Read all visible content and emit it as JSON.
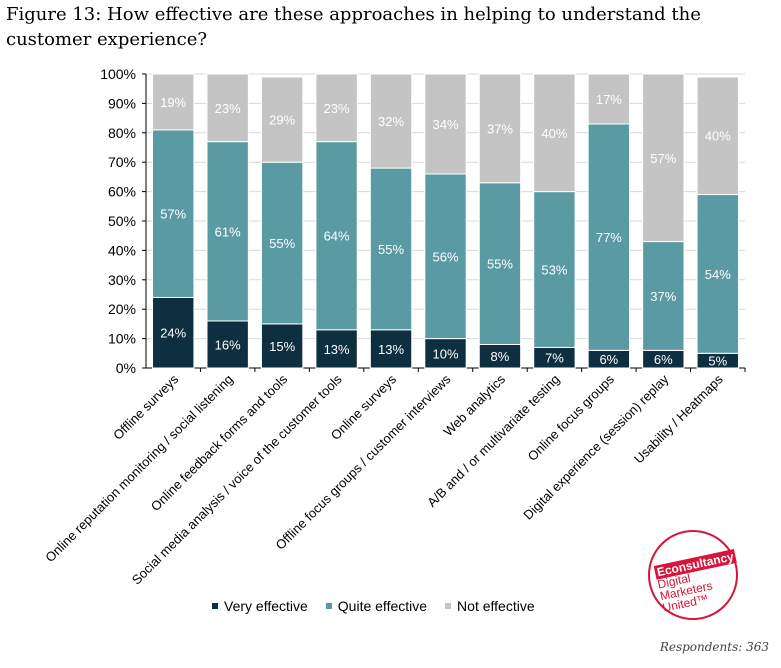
{
  "title": "Figure 13: How effective are these approaches in helping to understand the customer experience?",
  "respondents": "Respondents: 363",
  "logo": {
    "brand": "Econsultancy",
    "lines": [
      "Digital",
      "Marketers",
      "United™"
    ]
  },
  "chart_data": {
    "type": "bar",
    "stacked": true,
    "title": "How effective are these approaches in helping to understand the customer experience?",
    "xlabel": "",
    "ylabel": "",
    "ylim": [
      0,
      100
    ],
    "y_ticks": [
      "0%",
      "10%",
      "20%",
      "30%",
      "40%",
      "50%",
      "60%",
      "70%",
      "80%",
      "90%",
      "100%"
    ],
    "grid": true,
    "legend_position": "bottom",
    "categories": [
      "Offline surveys",
      "Online reputation monitoring / social listening",
      "Online feedback forms and tools",
      "Social media analysis / voice of the customer tools",
      "Online surveys",
      "Offline focus groups / customer interviews",
      "Web analytics",
      "A/B and / or multivariate testing",
      "Online focus groups",
      "Digital experience (session) replay",
      "Usability / Heatmaps"
    ],
    "series": [
      {
        "name": "Very effective",
        "color": "#0d2f3f",
        "values": [
          24,
          16,
          15,
          13,
          13,
          10,
          8,
          7,
          6,
          6,
          5
        ]
      },
      {
        "name": "Quite effective",
        "color": "#5a9ba3",
        "values": [
          57,
          61,
          55,
          64,
          55,
          56,
          55,
          53,
          77,
          37,
          54
        ]
      },
      {
        "name": "Not effective",
        "color": "#c4c4c4",
        "values": [
          19,
          23,
          29,
          23,
          32,
          34,
          37,
          40,
          17,
          57,
          40
        ]
      }
    ]
  }
}
